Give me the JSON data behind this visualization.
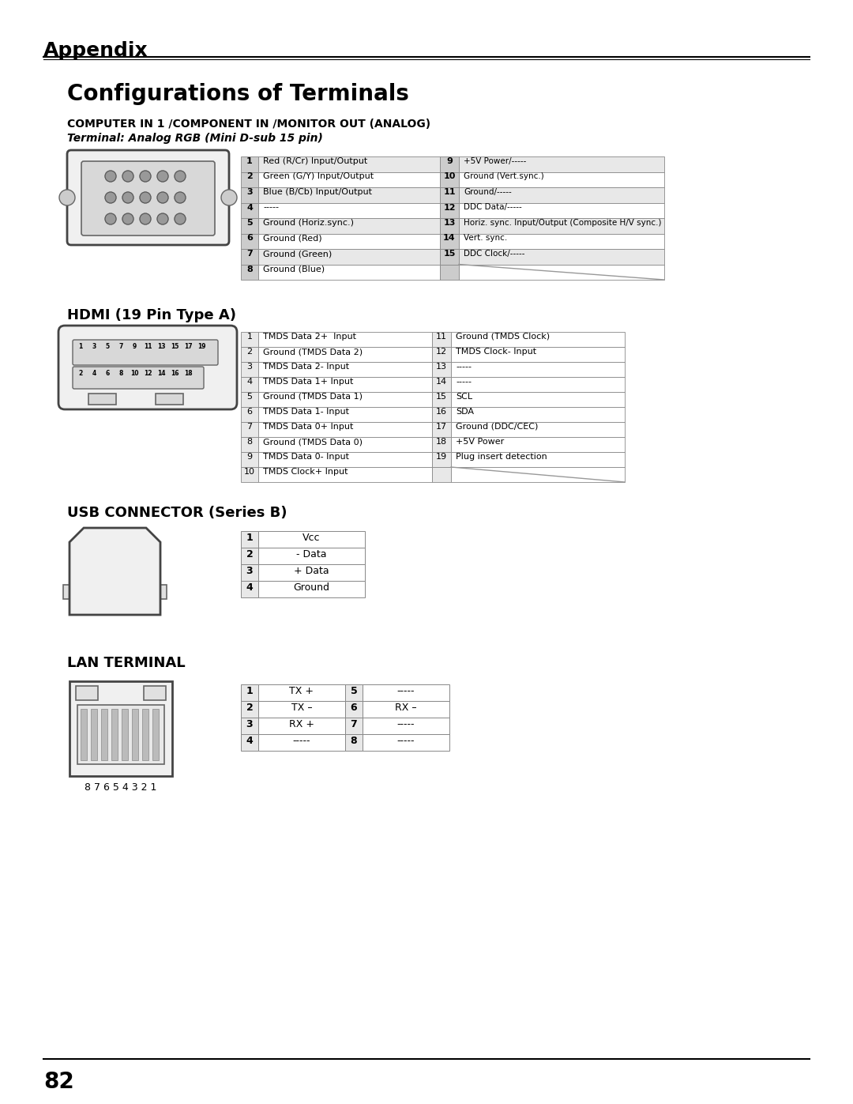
{
  "page_title": "Appendix",
  "section_title": "Configurations of Terminals",
  "bg_color": "#ffffff",
  "row_bg_gray": "#e8e8e8",
  "row_bg_white": "#ffffff",
  "computer_section": {
    "title1": "COMPUTER IN 1 /COMPONENT IN /MONITOR OUT (ANALOG)",
    "title2": "Terminal: Analog RGB (Mini D-sub 15 pin)",
    "left_col": [
      [
        "1",
        "Red (R/Cr) Input/Output"
      ],
      [
        "2",
        "Green (G/Y) Input/Output"
      ],
      [
        "3",
        "Blue (B/Cb) Input/Output"
      ],
      [
        "4",
        "-----"
      ],
      [
        "5",
        "Ground (Horiz.sync.)"
      ],
      [
        "6",
        "Ground (Red)"
      ],
      [
        "7",
        "Ground (Green)"
      ],
      [
        "8",
        "Ground (Blue)"
      ]
    ],
    "right_col": [
      [
        "9",
        "+5V Power/-----"
      ],
      [
        "10",
        "Ground (Vert.sync.)"
      ],
      [
        "11",
        "Ground/-----"
      ],
      [
        "12",
        "DDC Data/-----"
      ],
      [
        "13",
        "Horiz. sync. Input/Output (Composite H/V sync.)"
      ],
      [
        "14",
        "Vert. sync."
      ],
      [
        "15",
        "DDC Clock/-----"
      ],
      [
        "",
        ""
      ]
    ]
  },
  "hdmi_section": {
    "title": "HDMI (19 Pin Type A)",
    "left_col": [
      [
        "1",
        "TMDS Data 2+  Input"
      ],
      [
        "2",
        "Ground (TMDS Data 2)"
      ],
      [
        "3",
        "TMDS Data 2- Input"
      ],
      [
        "4",
        "TMDS Data 1+ Input"
      ],
      [
        "5",
        "Ground (TMDS Data 1)"
      ],
      [
        "6",
        "TMDS Data 1- Input"
      ],
      [
        "7",
        "TMDS Data 0+ Input"
      ],
      [
        "8",
        "Ground (TMDS Data 0)"
      ],
      [
        "9",
        "TMDS Data 0- Input"
      ],
      [
        "10",
        "TMDS Clock+ Input"
      ]
    ],
    "right_col": [
      [
        "11",
        "Ground (TMDS Clock)"
      ],
      [
        "12",
        "TMDS Clock- Input"
      ],
      [
        "13",
        "-----"
      ],
      [
        "14",
        "-----"
      ],
      [
        "15",
        "SCL"
      ],
      [
        "16",
        "SDA"
      ],
      [
        "17",
        "Ground (DDC/CEC)"
      ],
      [
        "18",
        "+5V Power"
      ],
      [
        "19",
        "Plug insert detection"
      ],
      [
        "",
        ""
      ]
    ]
  },
  "usb_section": {
    "title": "USB CONNECTOR (Series B)",
    "rows": [
      [
        "1",
        "Vcc"
      ],
      [
        "2",
        "- Data"
      ],
      [
        "3",
        "+ Data"
      ],
      [
        "4",
        "Ground"
      ]
    ]
  },
  "lan_section": {
    "title": "LAN TERMINAL",
    "left_col": [
      [
        "1",
        "TX +"
      ],
      [
        "2",
        "TX –"
      ],
      [
        "3",
        "RX +"
      ],
      [
        "4",
        "-----"
      ]
    ],
    "right_col": [
      [
        "5",
        "-----"
      ],
      [
        "6",
        "RX –"
      ],
      [
        "7",
        "-----"
      ],
      [
        "8",
        "-----"
      ]
    ],
    "label_below": "8 7 6 5 4 3 2 1"
  },
  "page_number": "82"
}
